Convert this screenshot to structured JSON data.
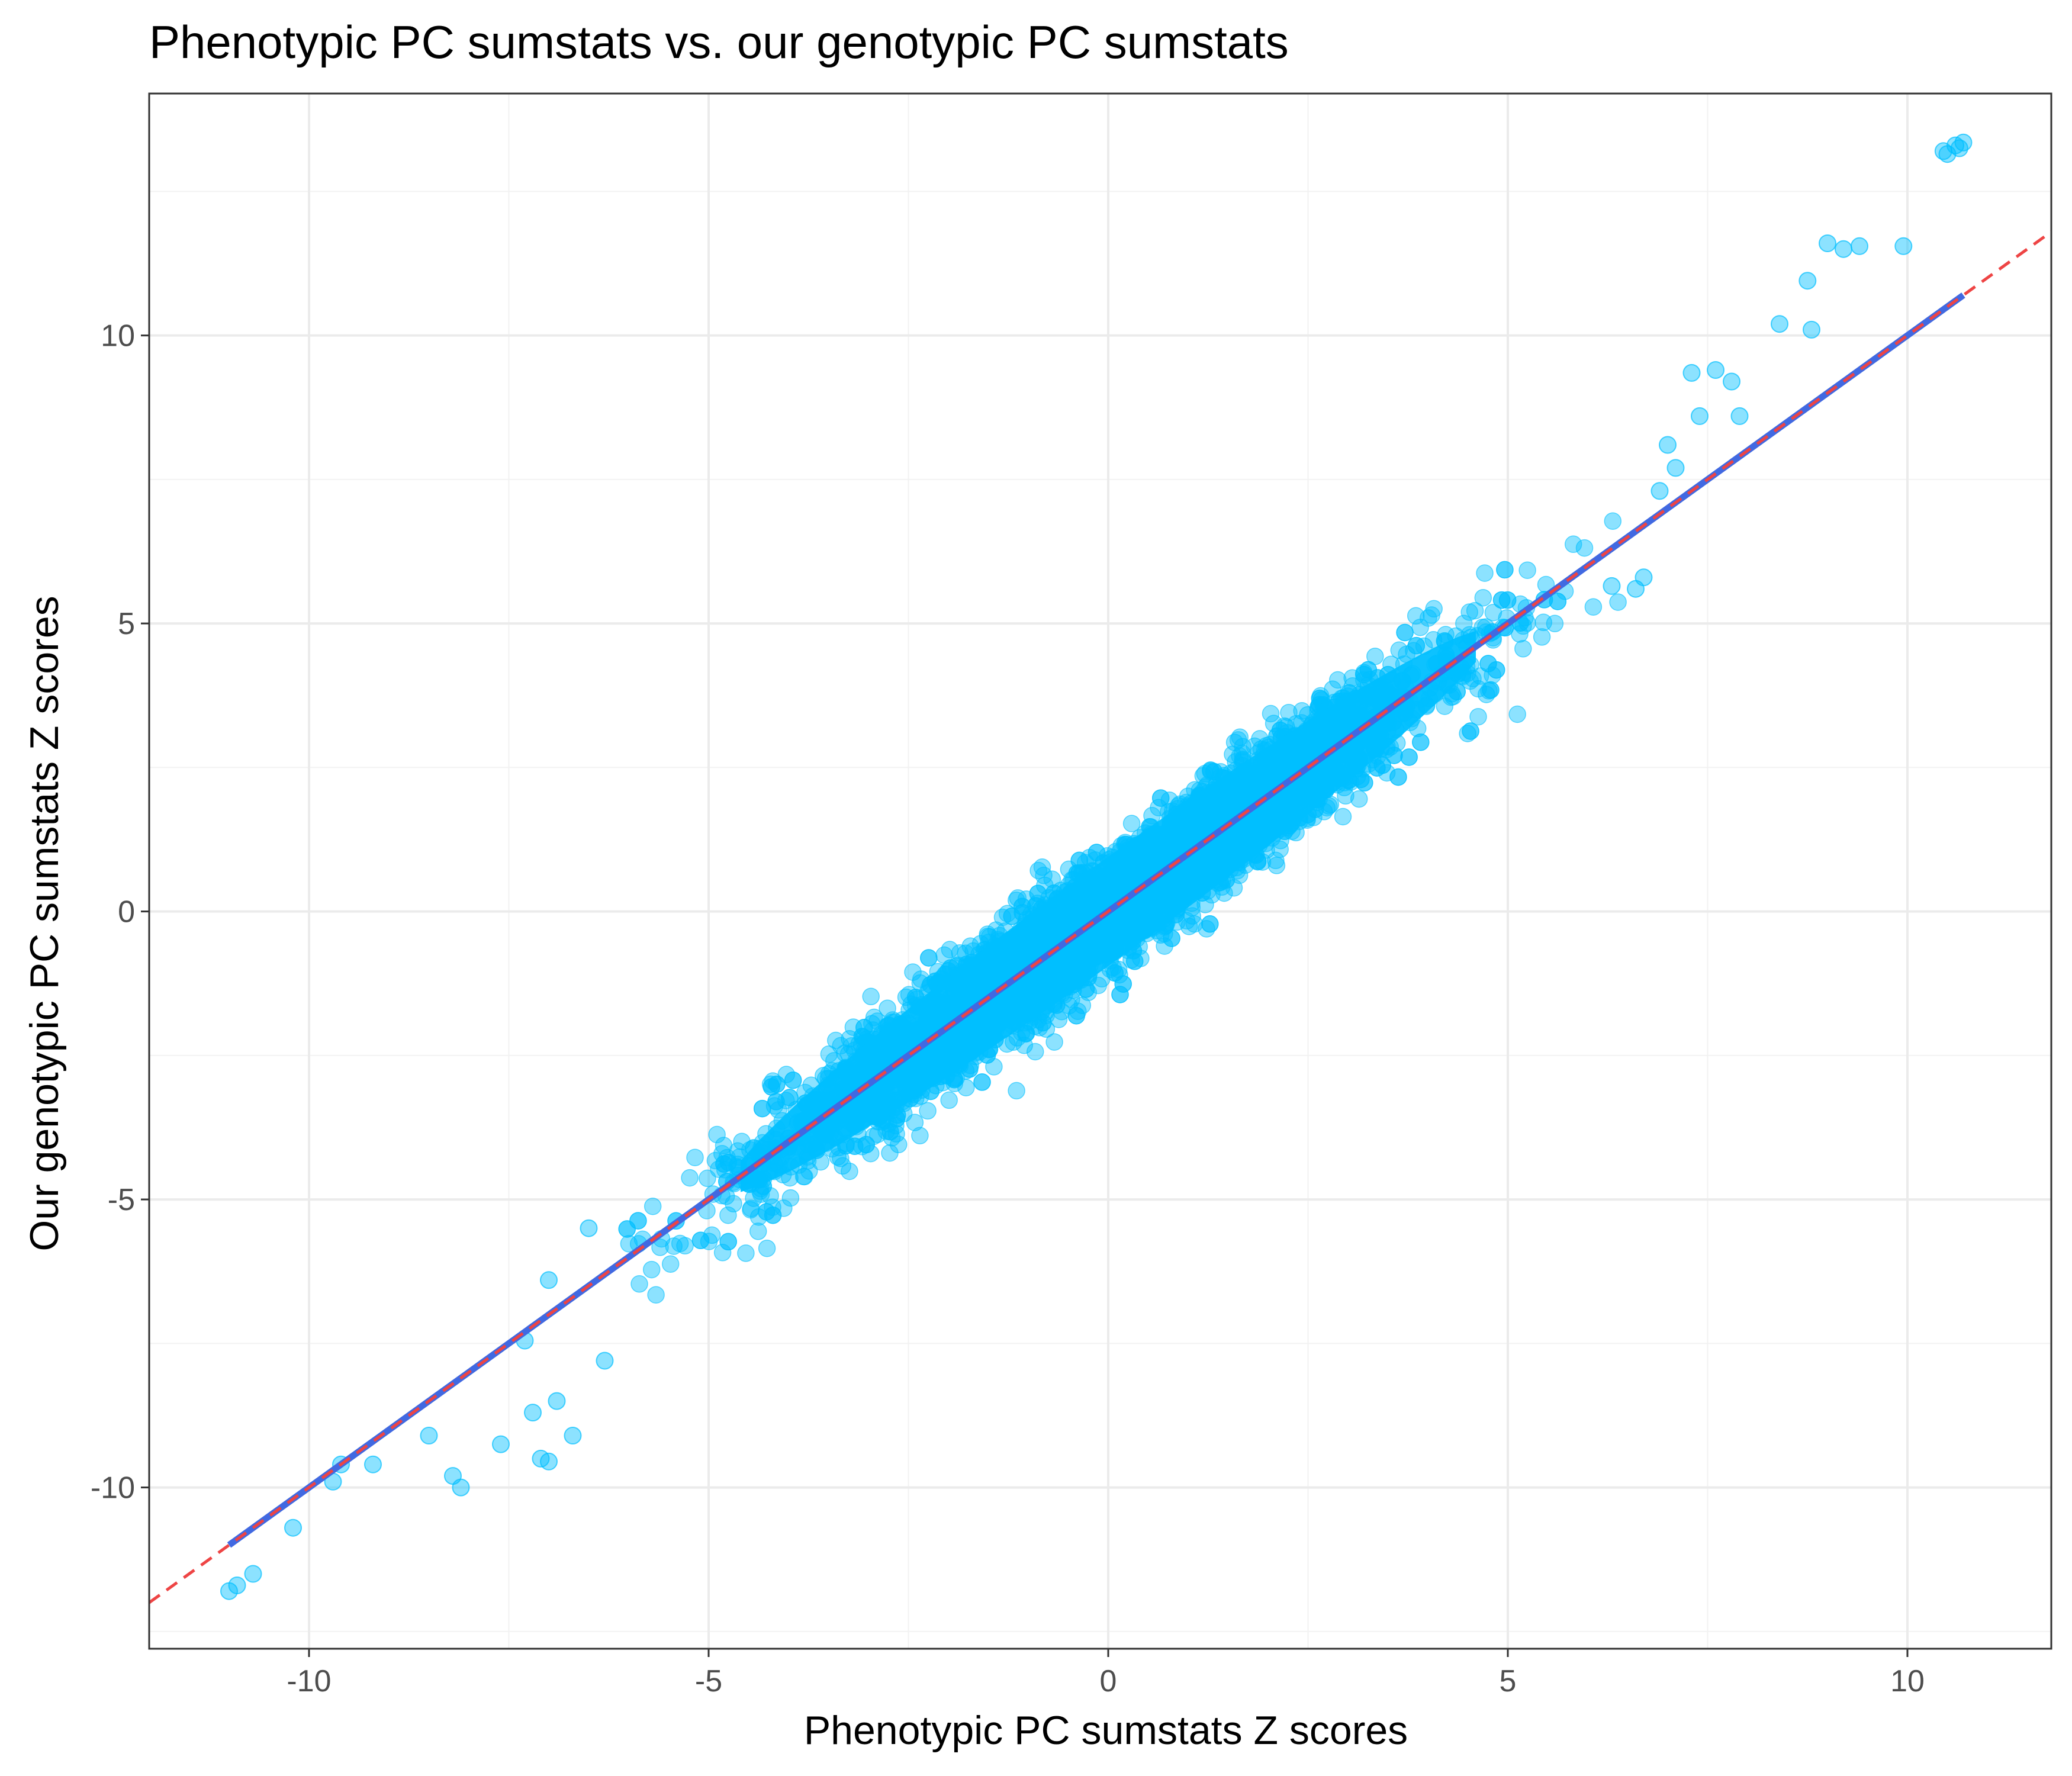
{
  "chart_data": {
    "type": "scatter",
    "title": "Phenotypic PC sumstats vs. our genotypic PC sumstats",
    "xlabel": "Phenotypic PC sumstats Z scores",
    "ylabel": "Our genotypic PC sumstats Z scores",
    "xlim": [
      -12,
      11.8
    ],
    "ylim": [
      -12.8,
      14.2
    ],
    "x_ticks": [
      -10,
      -5,
      0,
      5,
      10
    ],
    "y_ticks": [
      -10,
      -5,
      0,
      5,
      10
    ],
    "x_tick_labels": [
      "-10",
      "-5",
      "0",
      "5",
      "10"
    ],
    "y_tick_labels": [
      "-10",
      "-5",
      "0",
      "5",
      "10"
    ],
    "grid": true,
    "point_color": "#00BFFF",
    "point_opacity": 0.45,
    "bulk": {
      "center_x": 0,
      "center_y": 0,
      "x_range": [
        -6.5,
        6.5
      ],
      "slope": 1.0,
      "residual_sd": 0.55,
      "approx_points": 60000
    },
    "outliers": [
      {
        "x": 10.45,
        "y": 13.2
      },
      {
        "x": 10.6,
        "y": 13.3
      },
      {
        "x": 10.7,
        "y": 13.35
      },
      {
        "x": 10.5,
        "y": 13.15
      },
      {
        "x": 10.65,
        "y": 13.25
      },
      {
        "x": 9.0,
        "y": 11.6
      },
      {
        "x": 9.2,
        "y": 11.5
      },
      {
        "x": 9.4,
        "y": 11.55
      },
      {
        "x": 9.95,
        "y": 11.55
      },
      {
        "x": 8.75,
        "y": 10.95
      },
      {
        "x": 8.4,
        "y": 10.2
      },
      {
        "x": 8.8,
        "y": 10.1
      },
      {
        "x": 7.3,
        "y": 9.35
      },
      {
        "x": 7.6,
        "y": 9.4
      },
      {
        "x": 7.8,
        "y": 9.2
      },
      {
        "x": 7.4,
        "y": 8.6
      },
      {
        "x": 7.9,
        "y": 8.6
      },
      {
        "x": 7.0,
        "y": 8.1
      },
      {
        "x": 6.9,
        "y": 7.3
      },
      {
        "x": 7.1,
        "y": 7.7
      },
      {
        "x": 6.6,
        "y": 5.6
      },
      {
        "x": 6.7,
        "y": 5.8
      },
      {
        "x": 6.3,
        "y": 5.65
      },
      {
        "x": -11.0,
        "y": -11.8
      },
      {
        "x": -10.9,
        "y": -11.7
      },
      {
        "x": -10.7,
        "y": -11.5
      },
      {
        "x": -10.2,
        "y": -10.7
      },
      {
        "x": -9.7,
        "y": -9.9
      },
      {
        "x": -9.6,
        "y": -9.6
      },
      {
        "x": -9.2,
        "y": -9.6
      },
      {
        "x": -8.5,
        "y": -9.1
      },
      {
        "x": -8.2,
        "y": -9.8
      },
      {
        "x": -8.1,
        "y": -10.0
      },
      {
        "x": -7.6,
        "y": -9.25
      },
      {
        "x": -7.1,
        "y": -9.5
      },
      {
        "x": -7.0,
        "y": -9.55
      },
      {
        "x": -6.7,
        "y": -9.1
      },
      {
        "x": -7.3,
        "y": -7.45
      },
      {
        "x": -7.2,
        "y": -8.7
      },
      {
        "x": -6.9,
        "y": -8.5
      },
      {
        "x": -6.3,
        "y": -7.8
      },
      {
        "x": -7.0,
        "y": -6.4
      },
      {
        "x": -6.5,
        "y": -5.5
      }
    ],
    "lines": [
      {
        "name": "",
        "style": "solid",
        "color": "#4169E1",
        "slope": 1.0,
        "intercept": 0.0,
        "x_range": [
          -11.0,
          10.7
        ]
      },
      {
        "name": "",
        "style": "dashed",
        "color": "#EE4444",
        "slope": 1.0,
        "intercept": 0.0,
        "x_range": [
          -12.0,
          11.8
        ]
      }
    ]
  }
}
